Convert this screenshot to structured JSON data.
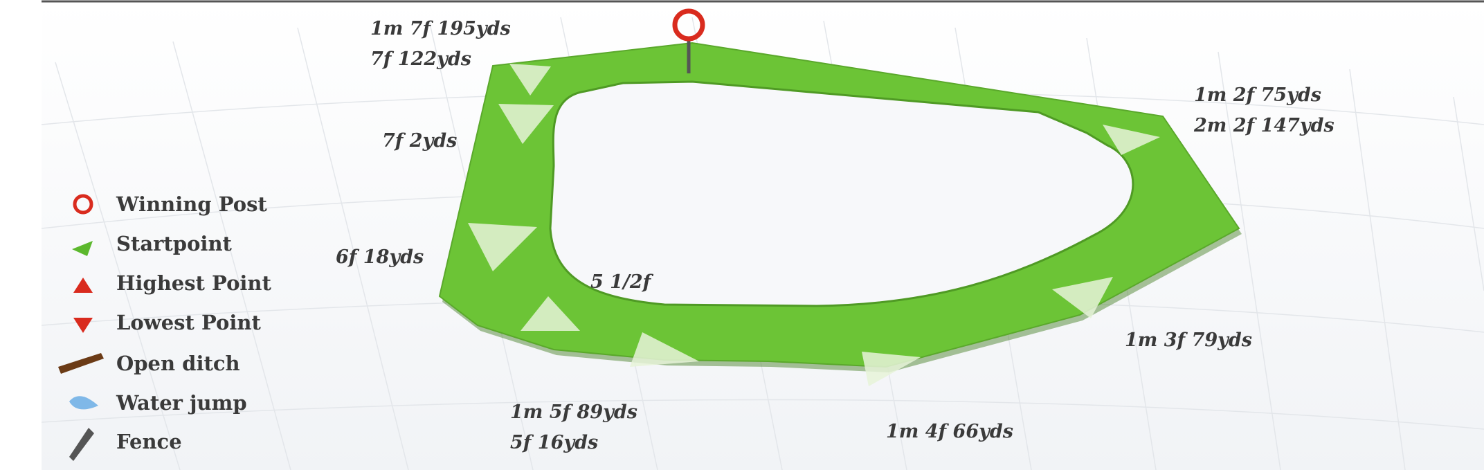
{
  "legend": [
    {
      "label": "Winning Post",
      "icon": "winning-post-circle-icon"
    },
    {
      "label": "Startpoint",
      "icon": "startpoint-triangle-icon"
    },
    {
      "label": "Highest Point",
      "icon": "highest-point-triangle-icon"
    },
    {
      "label": "Lowest Point",
      "icon": "lowest-point-triangle-icon"
    },
    {
      "label": "Open ditch",
      "icon": "open-ditch-icon"
    },
    {
      "label": "Water jump",
      "icon": "water-jump-icon"
    },
    {
      "label": "Fence",
      "icon": "fence-icon"
    }
  ],
  "distances": {
    "top_left_1": "1m 7f 195yds",
    "top_left_2": "7f 122yds",
    "left_upper": "7f 2yds",
    "left_lower": "6f 18yds",
    "inner": "5 1/2f",
    "bottom_left_1": "1m 5f 89yds",
    "bottom_left_2": "5f 16yds",
    "bottom_mid": "1m 4f 66yds",
    "right_lower": "1m 3f 79yds",
    "top_right_1": "1m 2f 75yds",
    "top_right_2": "2m 2f 147yds"
  },
  "colors": {
    "track": "#6cc436",
    "track_dark": "#4f9a24",
    "winning_post": "#d92b1e",
    "startpoint": "#5cb82d",
    "marker_fill": "#e6f3d8",
    "open_ditch": "#6b3b16",
    "water_jump": "#7fb8e8",
    "fence": "#555555"
  }
}
